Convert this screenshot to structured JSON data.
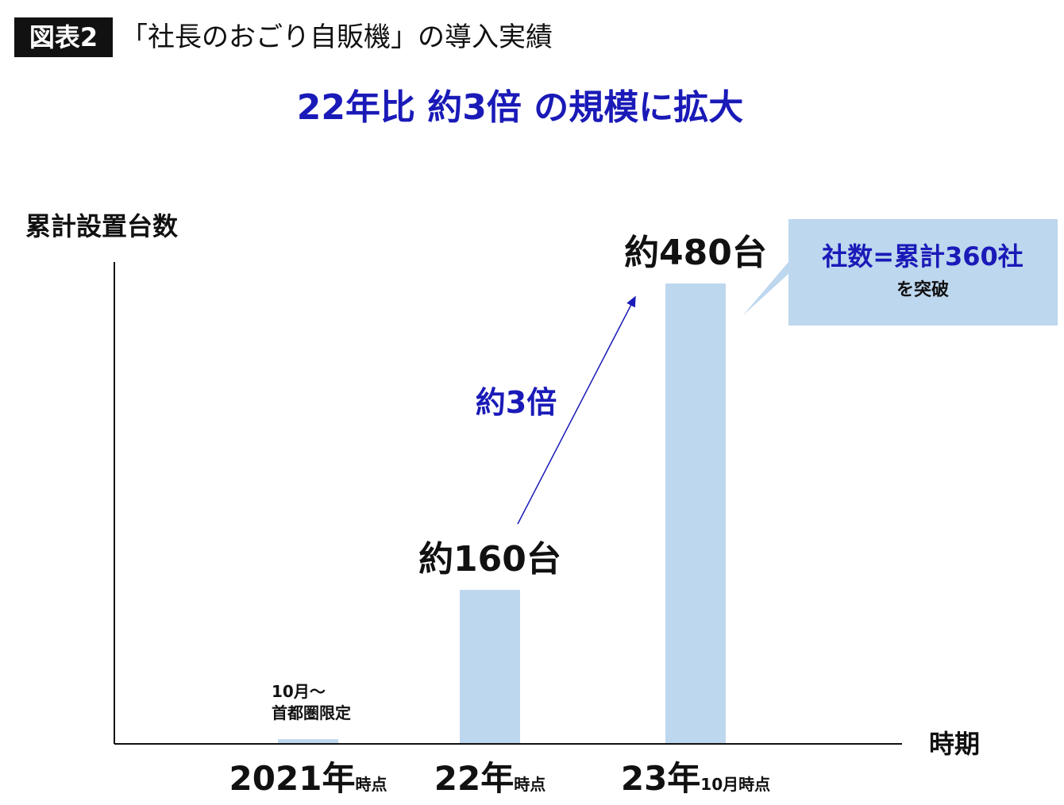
{
  "chart_data": {
    "type": "bar",
    "figure_label": "図表2",
    "title": "「社長のおごり自販機」の導入実績",
    "subtitle": "22年比 約3倍 の規模に拡大",
    "y_label": "累計設置台数",
    "x_label": "時期",
    "categories": [
      "2021年",
      "22年",
      "23年"
    ],
    "category_notes": [
      "時点",
      "時点",
      "10月時点"
    ],
    "values": [
      4,
      160,
      480
    ],
    "value_labels": [
      null,
      "約160台",
      "約480台"
    ],
    "color": "#bdd7ee",
    "ylim": [
      0,
      500
    ],
    "annotations": [
      "10月～",
      "首都圏限定",
      "約3倍"
    ],
    "callout": [
      "社数=累計360社",
      "を突破"
    ]
  }
}
